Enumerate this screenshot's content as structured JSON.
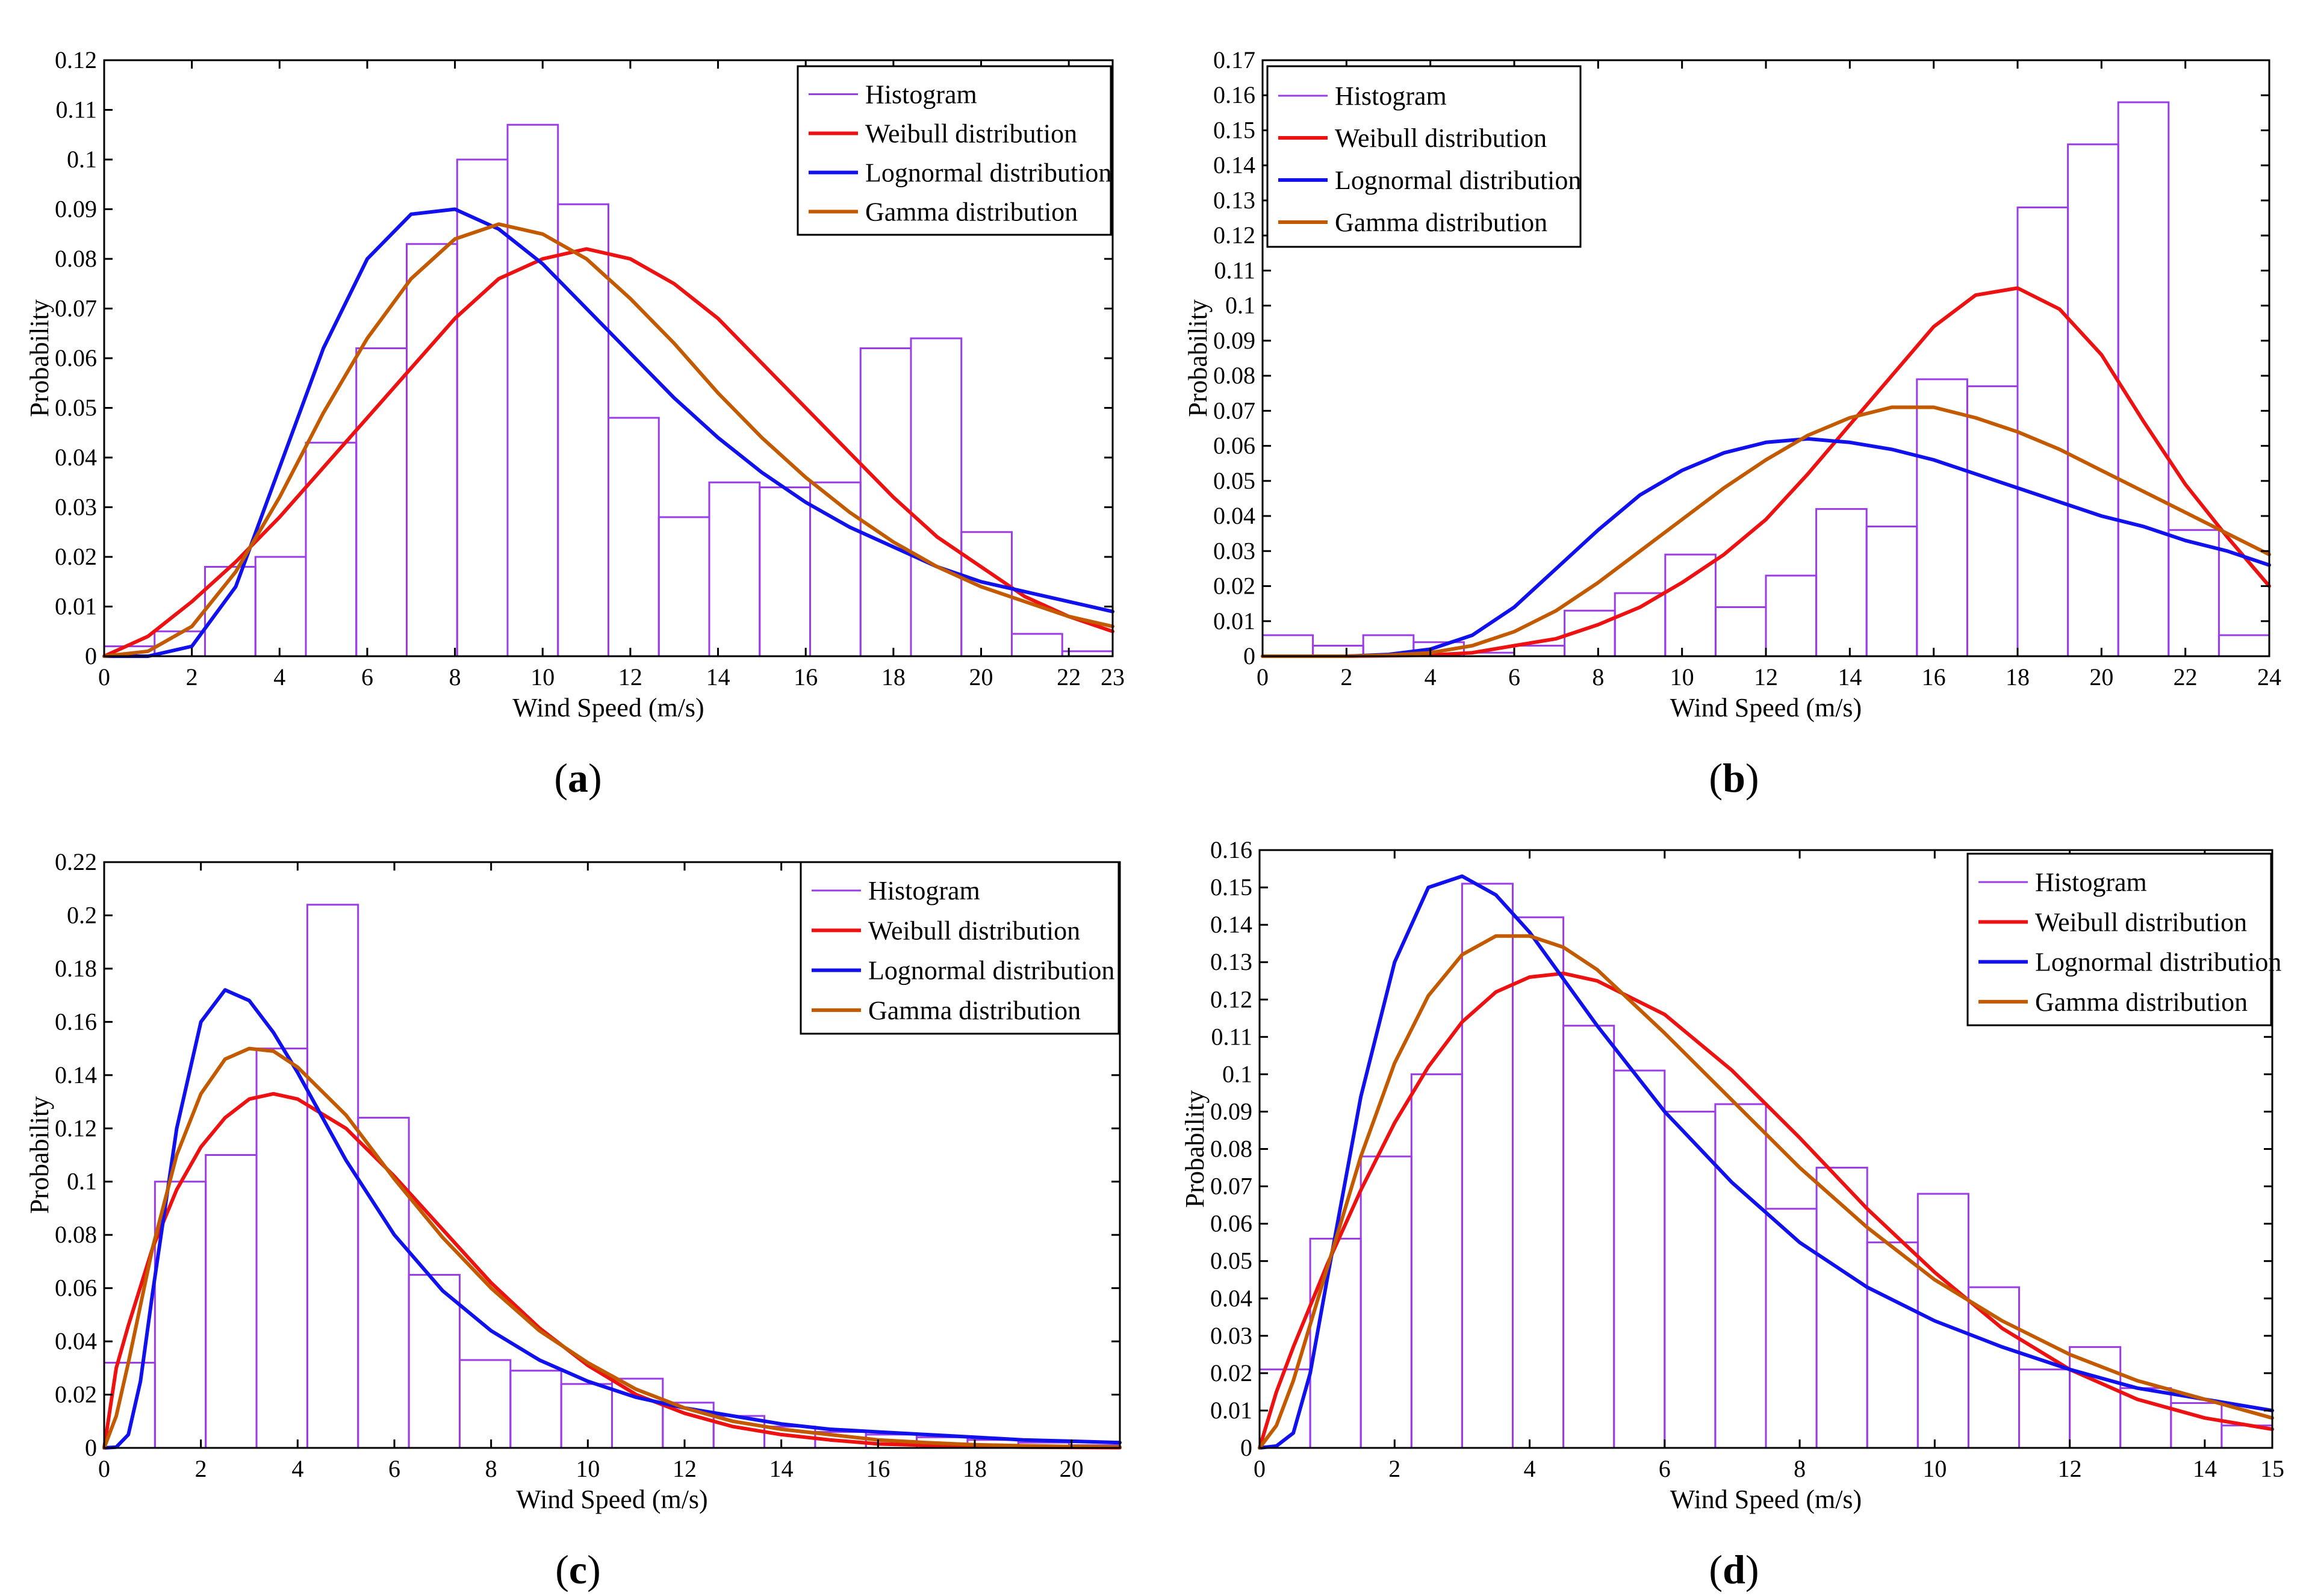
{
  "figure": {
    "colors": {
      "histogram": "#9C3CE8",
      "weibull": "#EE1111",
      "lognormal": "#1111EE",
      "gamma": "#C45A00"
    }
  },
  "chart_data": [
    {
      "id": "a",
      "type": "bar",
      "caption": "a",
      "xlabel": "Wind Speed (m/s)",
      "ylabel": "Probability",
      "xlim": [
        0,
        23
      ],
      "ylim": [
        0,
        0.12
      ],
      "xticks": [
        0,
        2,
        4,
        6,
        8,
        10,
        12,
        14,
        16,
        18,
        20,
        22,
        23
      ],
      "yticks": [
        0,
        0.01,
        0.02,
        0.03,
        0.04,
        0.05,
        0.06,
        0.07,
        0.08,
        0.09,
        0.1,
        0.11,
        0.12
      ],
      "legend_labels": [
        "Histogram",
        "Weibull distribution",
        "Lognormal distribution",
        "Gamma distribution"
      ],
      "legend_position": "top-right",
      "hist_edges": [
        0,
        1.15,
        2.3,
        3.45,
        4.6,
        5.75,
        6.9,
        8.05,
        9.2,
        10.35,
        11.5,
        12.65,
        13.8,
        14.95,
        16.1,
        17.25,
        18.4,
        19.55,
        20.7,
        21.85,
        23
      ],
      "hist_values": [
        0.002,
        0.005,
        0.018,
        0.02,
        0.043,
        0.062,
        0.083,
        0.1,
        0.107,
        0.091,
        0.048,
        0.028,
        0.035,
        0.034,
        0.035,
        0.062,
        0.064,
        0.025,
        0.0045,
        0.001
      ],
      "series": [
        {
          "name": "Weibull distribution",
          "x": [
            0,
            1,
            2,
            3,
            4,
            5,
            6,
            7,
            8,
            9,
            10,
            11,
            12,
            13,
            14,
            15,
            16,
            17,
            18,
            19,
            20,
            21,
            22,
            23
          ],
          "y": [
            0,
            0.004,
            0.011,
            0.019,
            0.028,
            0.038,
            0.048,
            0.058,
            0.068,
            0.076,
            0.08,
            0.082,
            0.08,
            0.075,
            0.068,
            0.059,
            0.05,
            0.041,
            0.032,
            0.024,
            0.018,
            0.012,
            0.008,
            0.005
          ]
        },
        {
          "name": "Lognormal distribution",
          "x": [
            0,
            1,
            2,
            3,
            4,
            5,
            6,
            7,
            8,
            9,
            10,
            11,
            12,
            13,
            14,
            15,
            16,
            17,
            18,
            19,
            20,
            21,
            22,
            23
          ],
          "y": [
            0,
            0.0,
            0.002,
            0.014,
            0.038,
            0.062,
            0.08,
            0.089,
            0.09,
            0.086,
            0.079,
            0.07,
            0.061,
            0.052,
            0.044,
            0.037,
            0.031,
            0.026,
            0.022,
            0.018,
            0.015,
            0.013,
            0.011,
            0.009
          ]
        },
        {
          "name": "Gamma distribution",
          "x": [
            0,
            1,
            2,
            3,
            4,
            5,
            6,
            7,
            8,
            9,
            10,
            11,
            12,
            13,
            14,
            15,
            16,
            17,
            18,
            19,
            20,
            21,
            22,
            23
          ],
          "y": [
            0,
            0.001,
            0.006,
            0.017,
            0.032,
            0.049,
            0.064,
            0.076,
            0.084,
            0.087,
            0.085,
            0.08,
            0.072,
            0.063,
            0.053,
            0.044,
            0.036,
            0.029,
            0.023,
            0.018,
            0.014,
            0.011,
            0.008,
            0.006
          ]
        }
      ]
    },
    {
      "id": "b",
      "type": "bar",
      "caption": "b",
      "xlabel": "Wind Speed (m/s)",
      "ylabel": "Probability",
      "xlim": [
        0,
        24
      ],
      "ylim": [
        0,
        0.17
      ],
      "xticks": [
        0,
        2,
        4,
        6,
        8,
        10,
        12,
        14,
        16,
        18,
        20,
        22,
        24
      ],
      "yticks": [
        0,
        0.01,
        0.02,
        0.03,
        0.04,
        0.05,
        0.06,
        0.07,
        0.08,
        0.09,
        0.1,
        0.11,
        0.12,
        0.13,
        0.14,
        0.15,
        0.16,
        0.17
      ],
      "legend_labels": [
        "Histogram",
        "Weibull distribution",
        "Lognormal distribution",
        "Gamma distribution"
      ],
      "legend_position": "top-left",
      "hist_edges": [
        0,
        1.2,
        2.4,
        3.6,
        4.8,
        6.0,
        7.2,
        8.4,
        9.6,
        10.8,
        12.0,
        13.2,
        14.4,
        15.6,
        16.8,
        18.0,
        19.2,
        20.4,
        21.6,
        22.8,
        24
      ],
      "hist_values": [
        0.006,
        0.003,
        0.006,
        0.004,
        0.001,
        0.003,
        0.013,
        0.018,
        0.029,
        0.014,
        0.023,
        0.042,
        0.037,
        0.079,
        0.077,
        0.128,
        0.146,
        0.158,
        0.036,
        0.006
      ],
      "series": [
        {
          "name": "Weibull distribution",
          "x": [
            0,
            2,
            4,
            5,
            6,
            7,
            8,
            9,
            10,
            11,
            12,
            13,
            14,
            15,
            16,
            17,
            18,
            19,
            20,
            21,
            22,
            23,
            24
          ],
          "y": [
            0,
            0,
            0.0003,
            0.001,
            0.003,
            0.005,
            0.009,
            0.014,
            0.021,
            0.029,
            0.039,
            0.052,
            0.066,
            0.08,
            0.094,
            0.103,
            0.105,
            0.099,
            0.086,
            0.067,
            0.049,
            0.034,
            0.02
          ]
        },
        {
          "name": "Lognormal distribution",
          "x": [
            0,
            2,
            3,
            4,
            5,
            6,
            7,
            8,
            9,
            10,
            11,
            12,
            13,
            14,
            15,
            16,
            17,
            18,
            19,
            20,
            21,
            22,
            23,
            24
          ],
          "y": [
            0,
            0,
            0.0005,
            0.002,
            0.006,
            0.014,
            0.025,
            0.036,
            0.046,
            0.053,
            0.058,
            0.061,
            0.062,
            0.061,
            0.059,
            0.056,
            0.052,
            0.048,
            0.044,
            0.04,
            0.037,
            0.033,
            0.03,
            0.026
          ]
        },
        {
          "name": "Gamma distribution",
          "x": [
            0,
            2,
            3,
            4,
            5,
            6,
            7,
            8,
            9,
            10,
            11,
            12,
            13,
            14,
            15,
            16,
            17,
            18,
            19,
            20,
            21,
            22,
            23,
            24
          ],
          "y": [
            0,
            0,
            0.0003,
            0.001,
            0.003,
            0.007,
            0.013,
            0.021,
            0.03,
            0.039,
            0.048,
            0.056,
            0.063,
            0.068,
            0.071,
            0.071,
            0.068,
            0.064,
            0.059,
            0.053,
            0.047,
            0.041,
            0.035,
            0.029
          ]
        }
      ]
    },
    {
      "id": "c",
      "type": "bar",
      "caption": "c",
      "xlabel": "Wind Speed (m/s)",
      "ylabel": "Probability",
      "xlim": [
        0,
        21
      ],
      "ylim": [
        0,
        0.22
      ],
      "xticks": [
        0,
        2,
        4,
        6,
        8,
        10,
        12,
        14,
        16,
        18,
        20
      ],
      "yticks": [
        0,
        0.02,
        0.04,
        0.06,
        0.08,
        0.1,
        0.12,
        0.14,
        0.16,
        0.18,
        0.2,
        0.22
      ],
      "legend_labels": [
        "Histogram",
        "Weibull distribution",
        "Lognormal distribution",
        "Gamma distribution"
      ],
      "legend_position": "top-right",
      "hist_edges": [
        0,
        1.05,
        2.1,
        3.15,
        4.2,
        5.25,
        6.3,
        7.35,
        8.4,
        9.45,
        10.5,
        11.55,
        12.6,
        13.65,
        14.7,
        15.75,
        16.8,
        17.85,
        18.9,
        19.95,
        21
      ],
      "hist_values": [
        0.032,
        0.1,
        0.11,
        0.15,
        0.204,
        0.124,
        0.065,
        0.033,
        0.029,
        0.024,
        0.026,
        0.017,
        0.012,
        0.008,
        0.006,
        0.005,
        0.004,
        0.003,
        0.002,
        0.001
      ],
      "series": [
        {
          "name": "Weibull distribution",
          "x": [
            0,
            0.25,
            0.5,
            1,
            1.5,
            2,
            2.5,
            3,
            3.5,
            4,
            5,
            6,
            7,
            8,
            9,
            10,
            11,
            12,
            13,
            14,
            15,
            16,
            17,
            18,
            19,
            20,
            21
          ],
          "y": [
            0,
            0.03,
            0.046,
            0.075,
            0.097,
            0.113,
            0.124,
            0.131,
            0.133,
            0.131,
            0.12,
            0.102,
            0.082,
            0.062,
            0.045,
            0.031,
            0.02,
            0.013,
            0.008,
            0.005,
            0.003,
            0.0015,
            0.001,
            0.0005,
            0.0003,
            0.0002,
            0.0001
          ]
        },
        {
          "name": "Lognormal distribution",
          "x": [
            0,
            0.25,
            0.5,
            0.75,
            1,
            1.5,
            2,
            2.5,
            3,
            3.5,
            4,
            5,
            6,
            7,
            8,
            9,
            10,
            11,
            12,
            13,
            14,
            15,
            16,
            17,
            18,
            19,
            20,
            21
          ],
          "y": [
            0,
            0.0003,
            0.005,
            0.025,
            0.058,
            0.12,
            0.16,
            0.172,
            0.168,
            0.156,
            0.141,
            0.108,
            0.08,
            0.059,
            0.044,
            0.033,
            0.025,
            0.019,
            0.015,
            0.012,
            0.009,
            0.007,
            0.006,
            0.005,
            0.004,
            0.003,
            0.0025,
            0.002
          ]
        },
        {
          "name": "Gamma distribution",
          "x": [
            0,
            0.25,
            0.5,
            1,
            1.5,
            2,
            2.5,
            3,
            3.5,
            4,
            5,
            6,
            7,
            8,
            9,
            10,
            11,
            12,
            13,
            14,
            15,
            16,
            17,
            18,
            19,
            20,
            21
          ],
          "y": [
            0,
            0.012,
            0.032,
            0.075,
            0.11,
            0.133,
            0.146,
            0.15,
            0.149,
            0.143,
            0.125,
            0.101,
            0.079,
            0.06,
            0.044,
            0.032,
            0.022,
            0.015,
            0.01,
            0.007,
            0.005,
            0.003,
            0.002,
            0.0012,
            0.0008,
            0.0005,
            0.0003
          ]
        }
      ]
    },
    {
      "id": "d",
      "type": "bar",
      "caption": "d",
      "xlabel": "Wind Speed (m/s)",
      "ylabel": "Probability",
      "xlim": [
        0,
        15
      ],
      "ylim": [
        0,
        0.16
      ],
      "xticks": [
        0,
        2,
        4,
        6,
        8,
        10,
        12,
        14,
        15
      ],
      "yticks": [
        0,
        0.01,
        0.02,
        0.03,
        0.04,
        0.05,
        0.06,
        0.07,
        0.08,
        0.09,
        0.1,
        0.11,
        0.12,
        0.13,
        0.14,
        0.15,
        0.16
      ],
      "legend_labels": [
        "Histogram",
        "Weibull distribution",
        "Lognormal distribution",
        "Gamma distribution"
      ],
      "legend_position": "top-right",
      "hist_edges": [
        0,
        0.75,
        1.5,
        2.25,
        3.0,
        3.75,
        4.5,
        5.25,
        6.0,
        6.75,
        7.5,
        8.25,
        9.0,
        9.75,
        10.5,
        11.25,
        12.0,
        12.75,
        13.5,
        14.25,
        15
      ],
      "hist_values": [
        0.021,
        0.056,
        0.078,
        0.1,
        0.151,
        0.142,
        0.113,
        0.101,
        0.09,
        0.092,
        0.064,
        0.075,
        0.055,
        0.068,
        0.043,
        0.021,
        0.027,
        0.016,
        0.012,
        0.006
      ],
      "series": [
        {
          "name": "Weibull distribution",
          "x": [
            0,
            0.25,
            0.5,
            1,
            1.5,
            2,
            2.5,
            3,
            3.5,
            4,
            4.5,
            5,
            6,
            7,
            8,
            9,
            10,
            11,
            12,
            13,
            14,
            15
          ],
          "y": [
            0,
            0.015,
            0.027,
            0.049,
            0.069,
            0.087,
            0.102,
            0.114,
            0.122,
            0.126,
            0.127,
            0.125,
            0.116,
            0.101,
            0.083,
            0.064,
            0.047,
            0.032,
            0.021,
            0.013,
            0.008,
            0.005
          ]
        },
        {
          "name": "Lognormal distribution",
          "x": [
            0,
            0.25,
            0.5,
            0.75,
            1,
            1.5,
            2,
            2.5,
            3,
            3.5,
            4,
            5,
            6,
            7,
            8,
            9,
            10,
            11,
            12,
            13,
            14,
            15
          ],
          "y": [
            0,
            0.0005,
            0.004,
            0.02,
            0.045,
            0.094,
            0.13,
            0.15,
            0.153,
            0.148,
            0.138,
            0.113,
            0.09,
            0.071,
            0.055,
            0.043,
            0.034,
            0.027,
            0.021,
            0.016,
            0.013,
            0.01
          ]
        },
        {
          "name": "Gamma distribution",
          "x": [
            0,
            0.25,
            0.5,
            1,
            1.5,
            2,
            2.5,
            3,
            3.5,
            4,
            4.5,
            5,
            6,
            7,
            8,
            9,
            10,
            11,
            12,
            13,
            14,
            15
          ],
          "y": [
            0,
            0.006,
            0.018,
            0.048,
            0.078,
            0.103,
            0.121,
            0.132,
            0.137,
            0.137,
            0.134,
            0.128,
            0.111,
            0.093,
            0.075,
            0.059,
            0.045,
            0.034,
            0.025,
            0.018,
            0.013,
            0.008
          ]
        }
      ]
    }
  ]
}
